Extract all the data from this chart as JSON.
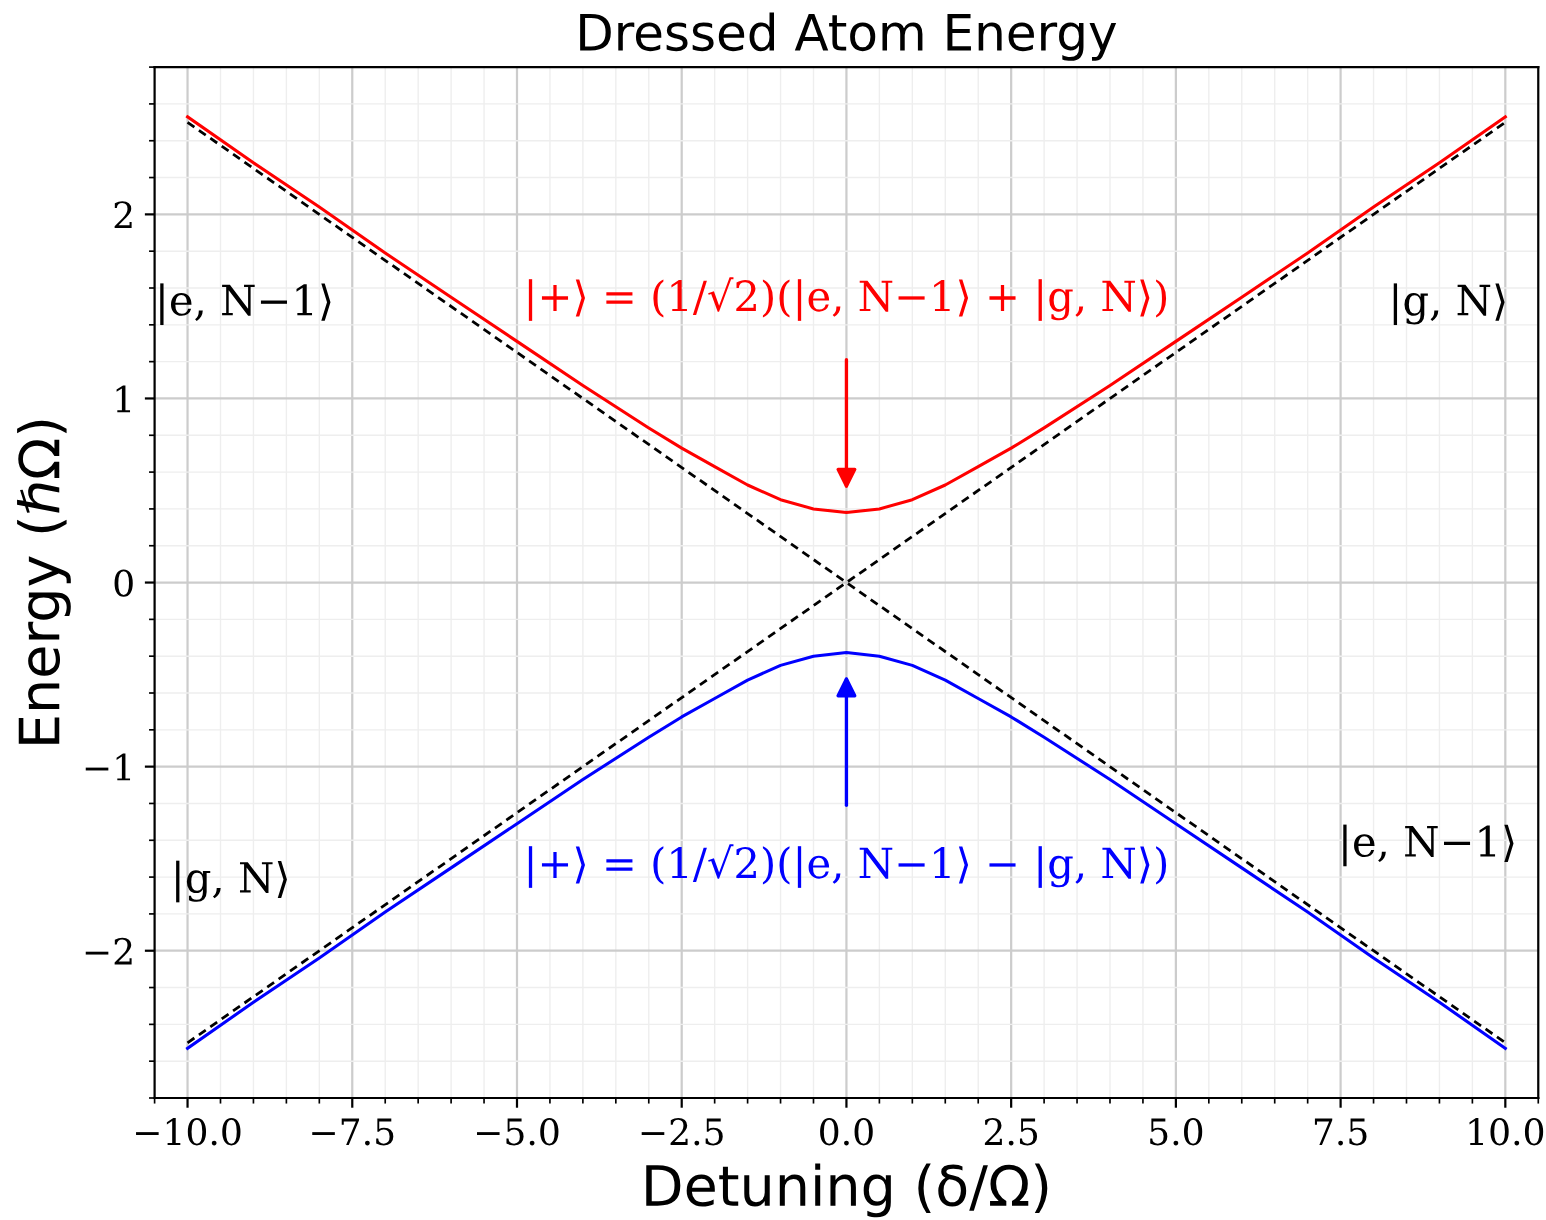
{
  "chart_data": {
    "type": "line",
    "title": "Dressed Atom Energy",
    "xlabel": "Detuning (δ/Ω)",
    "ylabel": "Energy (ℏΩ)",
    "x": [
      -10,
      -9,
      -8,
      -7,
      -6,
      -5,
      -4,
      -3,
      -2.5,
      -2,
      -1.5,
      -1,
      -0.5,
      0,
      0.5,
      1,
      1.5,
      2,
      2.5,
      3,
      4,
      5,
      6,
      7,
      8,
      9,
      10
    ],
    "series": [
      {
        "color": "#ff0000",
        "values": [
          2.53,
          2.28,
          2.04,
          1.79,
          1.55,
          1.31,
          1.07,
          0.84,
          0.73,
          0.63,
          0.53,
          0.45,
          0.4,
          0.38,
          0.4,
          0.45,
          0.53,
          0.63,
          0.73,
          0.84,
          1.07,
          1.31,
          1.55,
          1.79,
          2.04,
          2.28,
          2.53
        ]
      },
      {
        "color": "#0000ff",
        "values": [
          -2.53,
          -2.28,
          -2.04,
          -1.79,
          -1.55,
          -1.31,
          -1.07,
          -0.84,
          -0.73,
          -0.63,
          -0.53,
          -0.45,
          -0.4,
          -0.38,
          -0.4,
          -0.45,
          -0.53,
          -0.63,
          -0.73,
          -0.84,
          -1.07,
          -1.31,
          -1.55,
          -1.79,
          -2.04,
          -2.28,
          -2.53
        ]
      },
      {
        "color": "#000000",
        "line_style": "dashed",
        "x": [
          -10,
          0,
          10
        ],
        "values": [
          2.5,
          0,
          -2.5
        ]
      },
      {
        "color": "#000000",
        "line_style": "dashed",
        "x": [
          -10,
          0,
          10
        ],
        "values": [
          -2.5,
          0,
          2.5
        ]
      }
    ],
    "annotations": [
      "|+⟩ = (1/√2)(|e, N−1⟩ + |g, N⟩)",
      "|+⟩ = (1/√2)(|e, N−1⟩ − |g, N⟩)",
      "|e, N−1⟩",
      "|g, N⟩",
      "|g, N⟩",
      "|e, N−1⟩"
    ],
    "xlim": [
      -10.5,
      10.5
    ],
    "ylim": [
      -2.8,
      2.8
    ],
    "xticks": [
      {
        "value": -10,
        "label": "−10.0"
      },
      {
        "value": -7.5,
        "label": "−7.5"
      },
      {
        "value": -5,
        "label": "−5.0"
      },
      {
        "value": -2.5,
        "label": "−2.5"
      },
      {
        "value": 0,
        "label": "0.0"
      },
      {
        "value": 2.5,
        "label": "2.5"
      },
      {
        "value": 5,
        "label": "5.0"
      },
      {
        "value": 7.5,
        "label": "7.5"
      },
      {
        "value": 10,
        "label": "10.0"
      }
    ],
    "yticks": [
      {
        "value": -2,
        "label": "−2"
      },
      {
        "value": -1,
        "label": "−1"
      },
      0,
      1,
      2
    ],
    "grid": true,
    "legend": false,
    "marker": "none",
    "line_style": "solid"
  }
}
